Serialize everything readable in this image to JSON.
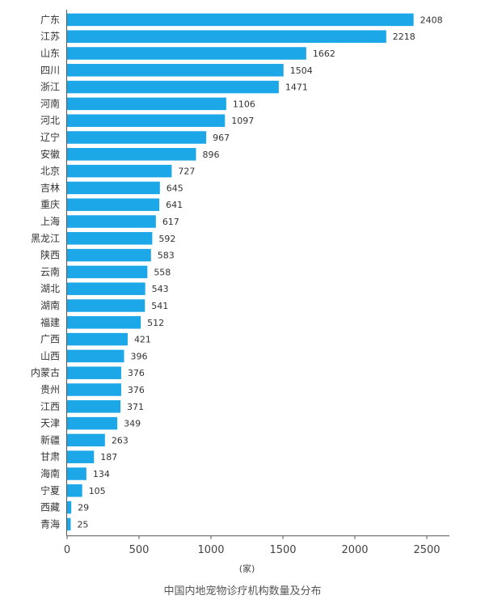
{
  "chart_data": {
    "type": "bar",
    "orientation": "horizontal",
    "title": "中国内地宠物诊疗机构数量及分布",
    "xlabel": "(家)",
    "ylabel": "",
    "xlim": [
      0,
      2500
    ],
    "xticks": [
      0,
      500,
      1000,
      1500,
      2000,
      2500
    ],
    "bar_color": "#1ba7e8",
    "grid": false,
    "categories": [
      "广东",
      "江苏",
      "山东",
      "四川",
      "浙江",
      "河南",
      "河北",
      "辽宁",
      "安徽",
      "北京",
      "吉林",
      "重庆",
      "上海",
      "黑龙江",
      "陕西",
      "云南",
      "湖北",
      "湖南",
      "福建",
      "广西",
      "山西",
      "内蒙古",
      "贵州",
      "江西",
      "天津",
      "新疆",
      "甘肃",
      "海南",
      "宁夏",
      "西藏",
      "青海"
    ],
    "values": [
      2408,
      2218,
      1662,
      1504,
      1471,
      1106,
      1097,
      967,
      896,
      727,
      645,
      641,
      617,
      592,
      583,
      558,
      543,
      541,
      512,
      421,
      396,
      376,
      376,
      371,
      349,
      263,
      187,
      134,
      105,
      29,
      25
    ]
  }
}
